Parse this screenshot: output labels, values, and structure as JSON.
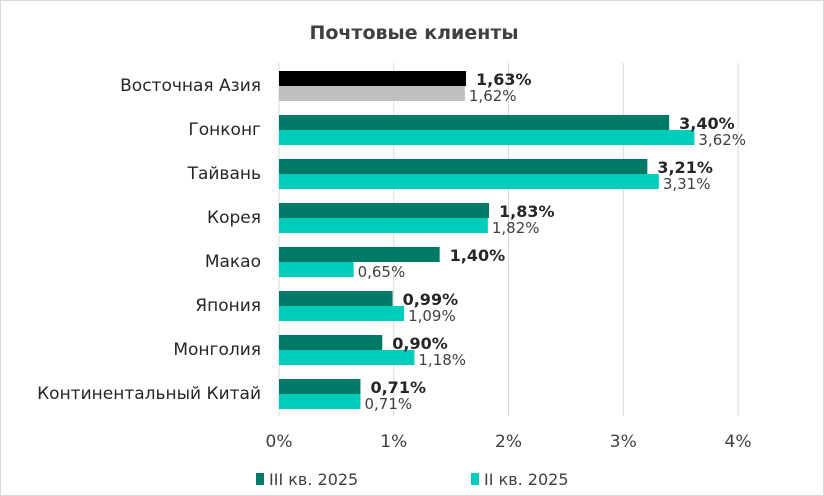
{
  "chart_data": {
    "type": "bar",
    "orientation": "horizontal",
    "title": "Почтовые клиенты",
    "categories": [
      "Восточная Азия",
      "Гонконг",
      "Тайвань",
      "Корея",
      "Макао",
      "Япония",
      "Монголия",
      "Континентальный Китай"
    ],
    "series": [
      {
        "name": "III кв. 2025",
        "color": "#007a66",
        "values": [
          1.63,
          3.4,
          3.21,
          1.83,
          1.4,
          0.99,
          0.9,
          0.71
        ],
        "labels": [
          "1,63%",
          "3,40%",
          "3,21%",
          "1,83%",
          "1,40%",
          "0,99%",
          "0,90%",
          "0,71%"
        ]
      },
      {
        "name": "II кв. 2025",
        "color": "#00ccbb",
        "values": [
          1.62,
          3.62,
          3.31,
          1.82,
          0.65,
          1.09,
          1.18,
          0.71
        ],
        "labels": [
          "1,62%",
          "3,62%",
          "3,31%",
          "1,82%",
          "0,65%",
          "1,09%",
          "1,18%",
          "0,71%"
        ]
      }
    ],
    "highlight": {
      "category": "Восточная Азия",
      "colors": [
        "#000000",
        "#bfbfbf"
      ]
    },
    "xlim": [
      0,
      4
    ],
    "xticks": [
      0,
      1,
      2,
      3,
      4
    ],
    "xtick_labels": [
      "0%",
      "1%",
      "2%",
      "3%",
      "4%"
    ],
    "grid": true,
    "legend_position": "bottom"
  }
}
